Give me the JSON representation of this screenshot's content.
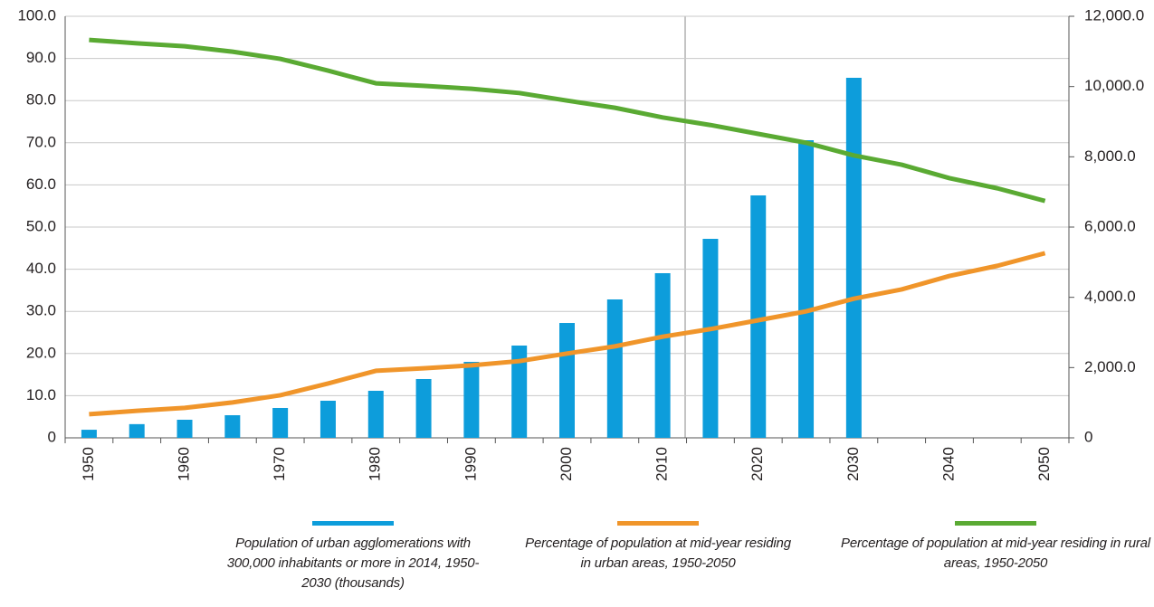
{
  "chart_data": {
    "type": "bar",
    "categories": [
      "1950",
      null,
      "1960",
      null,
      "1970",
      null,
      "1980",
      null,
      "1990",
      null,
      "2000",
      null,
      "2010",
      null,
      "2020",
      null,
      "2030",
      null,
      "2040",
      null,
      "2050"
    ],
    "series": [
      {
        "name": "Population of urban agglomerations with 300,000 inhabitants or more in 2014, 1950-2030 (thousands)",
        "type": "bar",
        "axis": "y2",
        "color": "#0d9ddb",
        "values": [
          230,
          390,
          515,
          644,
          850,
          1056,
          1339,
          1674,
          2163,
          2627,
          3270,
          3940,
          4687,
          5665,
          6901,
          8472,
          10249,
          null,
          null,
          null,
          null
        ]
      },
      {
        "name": "Percentage of population at mid-year residing in urban areas, 1950-2050",
        "type": "line",
        "color": "#f0952a",
        "values": [
          5.6,
          6.4,
          7.1,
          8.4,
          10.1,
          12.9,
          15.9,
          16.5,
          17.2,
          18.2,
          20.0,
          21.7,
          24.0,
          25.8,
          27.9,
          30.0,
          33.0,
          35.2,
          38.4,
          40.8,
          43.8
        ]
      },
      {
        "name": "Percentage of population at mid-year residing in rural areas, 1950-2050",
        "type": "line",
        "color": "#5aaa33",
        "values": [
          94.4,
          93.6,
          92.9,
          91.6,
          89.9,
          87.1,
          84.1,
          83.5,
          82.8,
          81.8,
          80.0,
          78.3,
          76.0,
          74.2,
          72.1,
          70.0,
          67.0,
          64.8,
          61.6,
          59.2,
          56.2
        ]
      }
    ],
    "ylim": [
      0,
      100
    ],
    "yticks": [
      0,
      {
        "value": 10,
        "label": "10.0"
      },
      {
        "value": 20,
        "label": "20.0"
      },
      {
        "value": 30,
        "label": "30.0"
      },
      {
        "value": 40,
        "label": "40.0"
      },
      {
        "value": 50,
        "label": "50.0"
      },
      {
        "value": 60,
        "label": "60.0"
      },
      {
        "value": 70,
        "label": "70.0"
      },
      {
        "value": 80,
        "label": "80.0"
      },
      {
        "value": 90,
        "label": "90.0"
      },
      {
        "value": 100,
        "label": "100.0"
      }
    ],
    "y2lim": [
      0,
      12000
    ],
    "y2ticks": [
      0,
      {
        "value": 2000,
        "label": "2,000.0"
      },
      {
        "value": 4000,
        "label": "4,000.0"
      },
      {
        "value": 6000,
        "label": "6,000.0"
      },
      {
        "value": 8000,
        "label": "8,000.0"
      },
      {
        "value": 10000,
        "label": "10,000.0"
      },
      {
        "value": 12000,
        "label": "12,000.0"
      }
    ],
    "grid": true
  }
}
